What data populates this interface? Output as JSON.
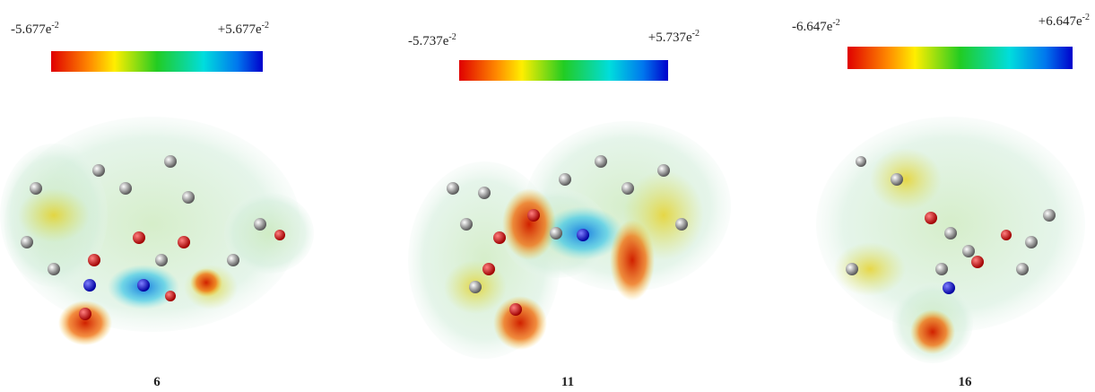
{
  "panels": [
    {
      "min_label": {
        "base": "-5.677e",
        "exp": "-2"
      },
      "max_label": {
        "base": "+5.677e",
        "exp": "-2"
      },
      "caption": "6"
    },
    {
      "min_label": {
        "base": "-5.737e",
        "exp": "-2"
      },
      "max_label": {
        "base": "+5.737e",
        "exp": "-2"
      },
      "caption": "11"
    },
    {
      "min_label": {
        "base": "-6.647e",
        "exp": "-2"
      },
      "max_label": {
        "base": "+6.647e",
        "exp": "-2"
      },
      "caption": "16"
    }
  ]
}
